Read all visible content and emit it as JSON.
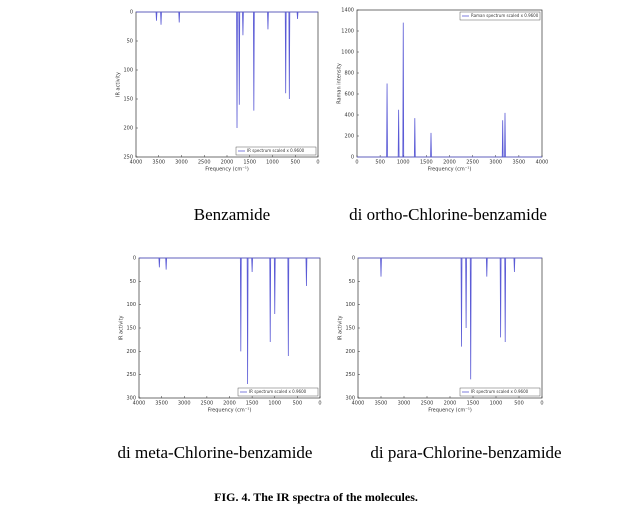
{
  "chart_data": [
    {
      "type": "line",
      "caption": "Benzamide",
      "xlabel": "Frequency (cm⁻¹)",
      "ylabel": "IR activity",
      "xlim": [
        4000,
        0
      ],
      "xticks": [
        4000,
        3500,
        3000,
        2500,
        2000,
        1500,
        1000,
        500,
        0
      ],
      "ylim": [
        250,
        0
      ],
      "yticks": [
        0,
        50,
        100,
        150,
        200,
        250
      ],
      "legend": "lower right",
      "x": [
        4000,
        3560,
        3550,
        3540,
        3460,
        3450,
        3440,
        3060,
        3050,
        3040,
        1790,
        1780,
        1770,
        1740,
        1730,
        1720,
        1660,
        1650,
        1640,
        1420,
        1410,
        1400,
        1110,
        1100,
        1090,
        720,
        710,
        700,
        640,
        630,
        620,
        460,
        450,
        440,
        0
      ],
      "series": [
        {
          "name": "IR spectrum scaled x 0.9600",
          "color": "#5b5bd6",
          "values": [
            0,
            0,
            15,
            0,
            0,
            22,
            0,
            0,
            18,
            0,
            0,
            200,
            0,
            0,
            160,
            0,
            0,
            40,
            0,
            0,
            170,
            0,
            0,
            30,
            0,
            0,
            140,
            0,
            0,
            150,
            0,
            0,
            12,
            0,
            0
          ]
        }
      ]
    },
    {
      "type": "line",
      "caption": "di ortho-Chlorine-benzamide",
      "xlabel": "Frequency (cm⁻¹)",
      "ylabel": "Raman intensity",
      "xlim": [
        0,
        4000
      ],
      "xticks": [
        0,
        500,
        1000,
        1500,
        2000,
        2500,
        3000,
        3500,
        4000
      ],
      "ylim": [
        0,
        1400
      ],
      "yticks": [
        0,
        200,
        400,
        600,
        800,
        1000,
        1200,
        1400
      ],
      "legend": "upper right",
      "x": [
        0,
        640,
        650,
        660,
        890,
        900,
        910,
        990,
        1000,
        1010,
        1240,
        1250,
        1260,
        1590,
        1600,
        1610,
        3140,
        3150,
        3160,
        3190,
        3200,
        3210,
        4000
      ],
      "series": [
        {
          "name": "Raman spectrum scaled x 0.9600",
          "color": "#5b5bd6",
          "values": [
            0,
            0,
            700,
            0,
            0,
            450,
            0,
            0,
            1280,
            0,
            0,
            370,
            0,
            0,
            230,
            0,
            0,
            350,
            0,
            0,
            420,
            0,
            0
          ]
        }
      ]
    },
    {
      "type": "line",
      "caption": "di meta-Chlorine-benzamide",
      "xlabel": "Frequency (cm⁻¹)",
      "ylabel": "IR activity",
      "xlim": [
        4000,
        0
      ],
      "xticks": [
        4000,
        3500,
        3000,
        2500,
        2000,
        1500,
        1000,
        500,
        0
      ],
      "ylim": [
        300,
        0
      ],
      "yticks": [
        0,
        50,
        100,
        150,
        200,
        250,
        300
      ],
      "legend": "lower right",
      "x": [
        4000,
        3560,
        3550,
        3540,
        3410,
        3400,
        3390,
        1760,
        1750,
        1740,
        1610,
        1600,
        1590,
        1510,
        1500,
        1490,
        1110,
        1100,
        1090,
        1010,
        1000,
        990,
        710,
        700,
        690,
        310,
        300,
        290,
        0
      ],
      "series": [
        {
          "name": "IR spectrum scaled x 0.9600",
          "color": "#5b5bd6",
          "values": [
            0,
            0,
            20,
            0,
            0,
            25,
            0,
            0,
            200,
            0,
            0,
            270,
            0,
            0,
            30,
            0,
            0,
            180,
            0,
            0,
            120,
            0,
            0,
            210,
            0,
            0,
            60,
            0,
            0
          ]
        }
      ]
    },
    {
      "type": "line",
      "caption": "di para-Chlorine-benzamide",
      "xlabel": "Frequency (cm⁻¹)",
      "ylabel": "IR activity",
      "xlim": [
        4000,
        0
      ],
      "xticks": [
        4000,
        3500,
        3000,
        2500,
        2000,
        1500,
        1000,
        500,
        0
      ],
      "ylim": [
        300,
        0
      ],
      "yticks": [
        0,
        50,
        100,
        150,
        200,
        250,
        300
      ],
      "legend": "lower right",
      "x": [
        4000,
        3510,
        3500,
        3490,
        1760,
        1750,
        1740,
        1660,
        1650,
        1640,
        1560,
        1550,
        1540,
        1210,
        1200,
        1190,
        910,
        900,
        890,
        810,
        800,
        790,
        610,
        600,
        590,
        0
      ],
      "series": [
        {
          "name": "IR spectrum scaled x 0.9600",
          "color": "#5b5bd6",
          "values": [
            0,
            0,
            40,
            0,
            0,
            190,
            0,
            0,
            150,
            0,
            0,
            260,
            0,
            0,
            40,
            0,
            0,
            170,
            0,
            0,
            180,
            0,
            0,
            30,
            0,
            0
          ]
        }
      ]
    }
  ],
  "figure_caption": "FIG. 4. The IR spectra of the molecules."
}
